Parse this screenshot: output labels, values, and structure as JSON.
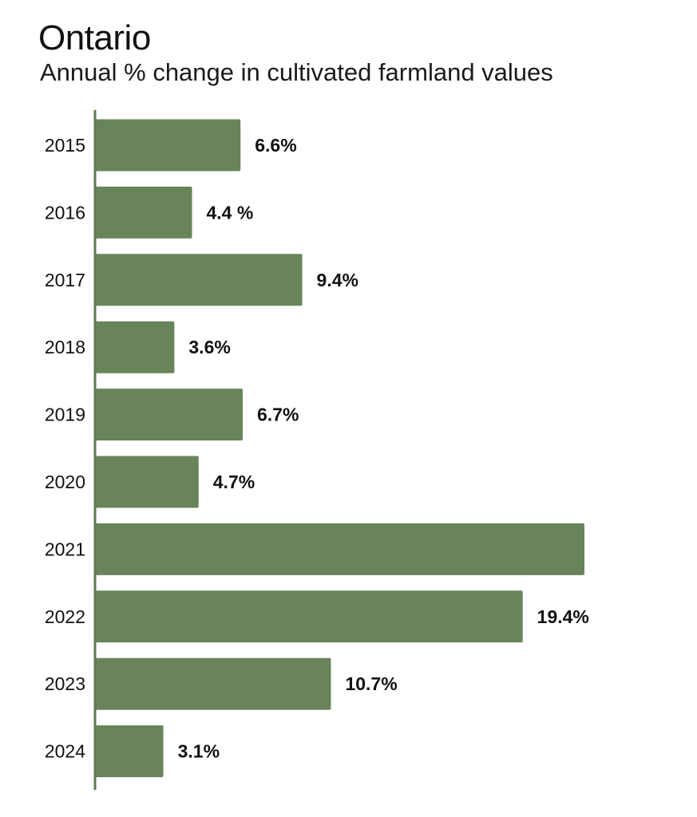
{
  "chart_data": {
    "type": "bar",
    "orientation": "horizontal",
    "title": "Ontario",
    "subtitle": "Annual % change in cultivated farmland values",
    "categories": [
      "2015",
      "2016",
      "2017",
      "2018",
      "2019",
      "2020",
      "2021",
      "2022",
      "2023",
      "2024"
    ],
    "values": [
      6.6,
      4.4,
      9.4,
      3.6,
      6.7,
      4.7,
      22.2,
      19.4,
      10.7,
      3.1
    ],
    "data_labels": [
      "6.6%",
      "4.4 %",
      "9.4%",
      "3.6%",
      "6.7%",
      "4.7%",
      "",
      "19.4%",
      "10.7%",
      "3.1%"
    ],
    "xlabel": "",
    "ylabel": "",
    "xlim": [
      0,
      22.2
    ],
    "grid": false,
    "legend": "none",
    "bar_color": "#69845a",
    "axis_color": "#5f7a50",
    "label_color": "#111111"
  }
}
